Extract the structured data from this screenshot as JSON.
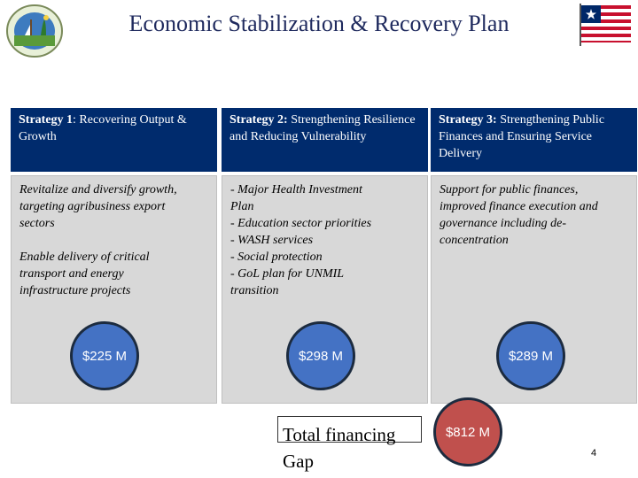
{
  "title": "Economic Stabilization & Recovery Plan",
  "logo": {
    "icon": "national-seal-icon",
    "text": "REPUBLIC OF LIBERIA"
  },
  "flag": {
    "icon": "liberian-flag-icon"
  },
  "strategies": [
    {
      "label": "Strategy 1",
      "name": ": Recovering Output & Growth",
      "details": [
        [
          "Revitalize and diversify growth,",
          "targeting agribusiness export",
          "sectors"
        ],
        [
          "Enable delivery of critical",
          "transport and energy",
          "infrastructure projects"
        ]
      ],
      "amount": "$225 M"
    },
    {
      "label": "Strategy 2:",
      "name": " Strengthening Resilience and Reducing Vulnerability",
      "details": [
        [
          "- Major Health Investment",
          "Plan",
          "- Education sector priorities",
          "- WASH services",
          "- Social protection",
          "- GoL plan for UNMIL",
          "transition"
        ]
      ],
      "amount": "$298 M"
    },
    {
      "label": "Strategy 3:",
      "name": " Strengthening Public Finances and Ensuring Service Delivery",
      "details": [
        [
          "Support for public finances,",
          "improved finance execution and",
          "governance including de-",
          "concentration"
        ]
      ],
      "amount": "$289 M"
    }
  ],
  "total": {
    "label_line1": "Total financing",
    "label_line2": "Gap",
    "amount": "$812 M"
  },
  "page_number": "4",
  "colors": {
    "header_bg": "#002b6d",
    "panel_bg": "#d8d8d8",
    "bubble": "#4472c4",
    "total_bubble": "#c0504d"
  }
}
